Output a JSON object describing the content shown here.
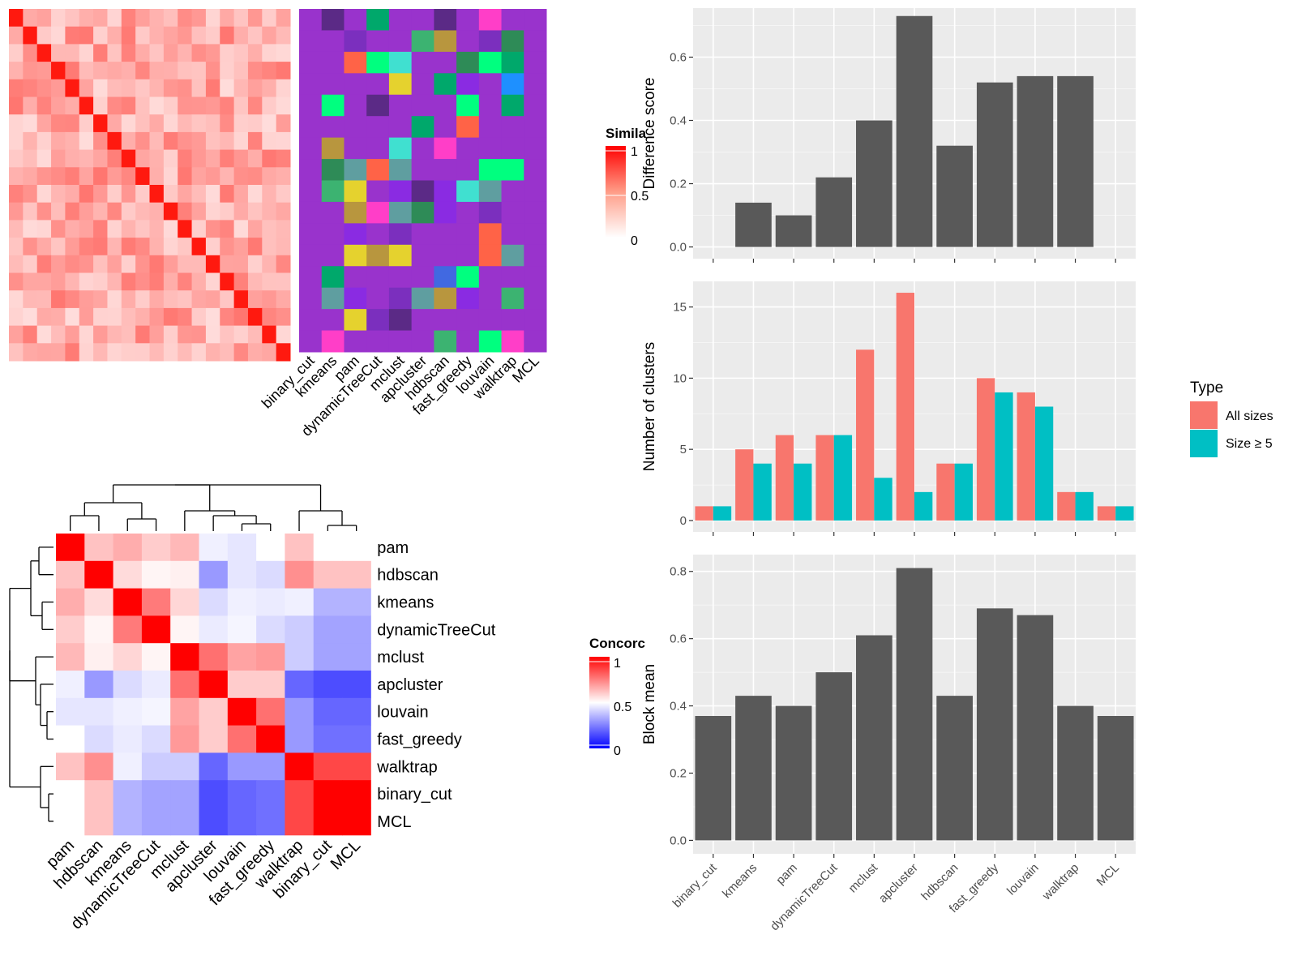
{
  "methods": [
    "binary_cut",
    "kmeans",
    "pam",
    "dynamicTreeCut",
    "mclust",
    "apcluster",
    "hdbscan",
    "fast_greedy",
    "louvain",
    "walktrap",
    "MCL"
  ],
  "similarity_panel": {
    "legend_title": "Simila",
    "legend_ticks": [
      "1",
      "0.5",
      "0"
    ],
    "colors": {
      "high": "#FF0000",
      "low": "#FFFFFF"
    }
  },
  "concordance_panel": {
    "legend_title": "Concorc",
    "legend_ticks": [
      "1",
      "0.5",
      "0"
    ],
    "colors": {
      "high": "#FF0000",
      "mid": "#FFFFFF",
      "low": "#0000FF"
    },
    "order": [
      "pam",
      "hdbscan",
      "kmeans",
      "dynamicTreeCut",
      "mclust",
      "apcluster",
      "louvain",
      "fast_greedy",
      "walktrap",
      "binary_cut",
      "MCL"
    ],
    "matrix": [
      [
        1.0,
        0.62,
        0.66,
        0.6,
        0.64,
        0.47,
        0.45,
        0.5,
        0.62,
        0.5,
        0.5
      ],
      [
        0.62,
        1.0,
        0.57,
        0.52,
        0.53,
        0.3,
        0.45,
        0.43,
        0.72,
        0.62,
        0.62
      ],
      [
        0.66,
        0.57,
        1.0,
        0.76,
        0.58,
        0.43,
        0.47,
        0.46,
        0.47,
        0.35,
        0.35
      ],
      [
        0.6,
        0.52,
        0.76,
        1.0,
        0.52,
        0.46,
        0.48,
        0.43,
        0.4,
        0.32,
        0.32
      ],
      [
        0.64,
        0.53,
        0.58,
        0.52,
        1.0,
        0.78,
        0.68,
        0.7,
        0.4,
        0.32,
        0.32
      ],
      [
        0.47,
        0.3,
        0.43,
        0.46,
        0.78,
        1.0,
        0.6,
        0.6,
        0.2,
        0.15,
        0.15
      ],
      [
        0.45,
        0.45,
        0.47,
        0.48,
        0.68,
        0.6,
        1.0,
        0.78,
        0.3,
        0.2,
        0.2
      ],
      [
        0.5,
        0.43,
        0.46,
        0.43,
        0.7,
        0.6,
        0.78,
        1.0,
        0.3,
        0.22,
        0.22
      ],
      [
        0.62,
        0.72,
        0.47,
        0.4,
        0.4,
        0.2,
        0.3,
        0.3,
        1.0,
        0.86,
        0.86
      ],
      [
        0.5,
        0.62,
        0.35,
        0.32,
        0.32,
        0.15,
        0.2,
        0.22,
        0.86,
        1.0,
        1.0
      ],
      [
        0.5,
        0.62,
        0.35,
        0.32,
        0.32,
        0.15,
        0.2,
        0.22,
        0.86,
        1.0,
        1.0
      ]
    ]
  },
  "chart_data": [
    {
      "type": "bar",
      "categories": [
        "binary_cut",
        "kmeans",
        "pam",
        "dynamicTreeCut",
        "mclust",
        "apcluster",
        "hdbscan",
        "fast_greedy",
        "louvain",
        "walktrap",
        "MCL"
      ],
      "values": [
        0,
        0.14,
        0.1,
        0.22,
        0.4,
        0.73,
        0.32,
        0.52,
        0.54,
        0.54,
        0
      ],
      "ylabel": "Difference score",
      "yticks": [
        "0.0",
        "0.2",
        "0.4",
        "0.6"
      ],
      "ylim": [
        -0.037,
        0.755
      ],
      "color": "#595959"
    },
    {
      "type": "bar",
      "categories": [
        "binary_cut",
        "kmeans",
        "pam",
        "dynamicTreeCut",
        "mclust",
        "apcluster",
        "hdbscan",
        "fast_greedy",
        "louvain",
        "walktrap",
        "MCL"
      ],
      "series": [
        {
          "name": "All sizes",
          "values": [
            1,
            5,
            6,
            6,
            12,
            16,
            4,
            10,
            9,
            2,
            1
          ],
          "color": "#F8766D"
        },
        {
          "name": "Size ≥ 5",
          "values": [
            1,
            4,
            4,
            6,
            3,
            2,
            4,
            9,
            8,
            2,
            1
          ],
          "color": "#00BFC4"
        }
      ],
      "ylabel": "Number of clusters",
      "yticks": [
        "0",
        "5",
        "10",
        "15"
      ],
      "ylim": [
        -0.8,
        16.8
      ],
      "legend": {
        "title": "Type",
        "placement": "right"
      }
    },
    {
      "type": "bar",
      "categories": [
        "binary_cut",
        "kmeans",
        "pam",
        "dynamicTreeCut",
        "mclust",
        "apcluster",
        "hdbscan",
        "fast_greedy",
        "louvain",
        "walktrap",
        "MCL"
      ],
      "values": [
        0.37,
        0.43,
        0.4,
        0.5,
        0.61,
        0.81,
        0.43,
        0.69,
        0.67,
        0.4,
        0.37
      ],
      "ylabel": "Block mean",
      "yticks": [
        "0.0",
        "0.2",
        "0.4",
        "0.6",
        "0.8"
      ],
      "ylim": [
        -0.04,
        0.85
      ],
      "color": "#595959"
    }
  ]
}
